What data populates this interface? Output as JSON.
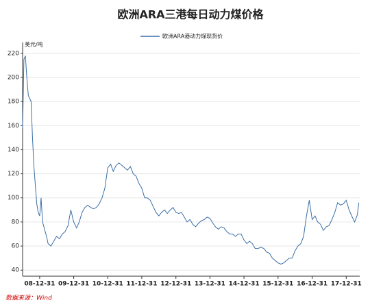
{
  "chart_data": {
    "type": "line",
    "title": "欧洲ARA三港每日动力煤价格",
    "y_label": "美元/吨",
    "source": "数据来源：Wind",
    "x": [
      "08-07-01",
      "08-07-15",
      "08-07-31",
      "08-08-15",
      "08-08-31",
      "08-09-30",
      "08-10-15",
      "08-10-31",
      "08-11-15",
      "08-11-30",
      "08-12-15",
      "08-12-31",
      "09-01-15",
      "09-01-31",
      "09-02-28",
      "09-03-15",
      "09-03-31",
      "09-04-30",
      "09-05-31",
      "09-06-30",
      "09-07-31",
      "09-08-31",
      "09-09-30",
      "09-10-31",
      "09-11-30",
      "09-12-31",
      "10-01-31",
      "10-02-28",
      "10-03-31",
      "10-04-30",
      "10-05-31",
      "10-06-30",
      "10-07-31",
      "10-08-31",
      "10-09-30",
      "10-10-31",
      "10-11-30",
      "10-12-31",
      "11-01-31",
      "11-02-28",
      "11-03-31",
      "11-04-30",
      "11-05-31",
      "11-06-30",
      "11-07-31",
      "11-08-31",
      "11-09-30",
      "11-10-31",
      "11-11-30",
      "11-12-31",
      "12-01-31",
      "12-02-29",
      "12-03-31",
      "12-04-30",
      "12-05-31",
      "12-06-30",
      "12-07-31",
      "12-08-31",
      "12-09-30",
      "12-10-31",
      "12-11-30",
      "12-12-31",
      "13-01-31",
      "13-02-28",
      "13-03-31",
      "13-04-30",
      "13-05-31",
      "13-06-30",
      "13-07-31",
      "13-08-31",
      "13-09-30",
      "13-10-31",
      "13-11-30",
      "13-12-31",
      "14-01-31",
      "14-02-28",
      "14-03-31",
      "14-04-30",
      "14-05-31",
      "14-06-30",
      "14-07-31",
      "14-08-31",
      "14-09-30",
      "14-10-31",
      "14-11-30",
      "14-12-31",
      "15-01-31",
      "15-02-28",
      "15-03-31",
      "15-04-30",
      "15-05-31",
      "15-06-30",
      "15-07-31",
      "15-08-31",
      "15-09-30",
      "15-10-31",
      "15-11-30",
      "15-12-31",
      "16-01-31",
      "16-02-29",
      "16-03-31",
      "16-04-30",
      "16-05-31",
      "16-06-30",
      "16-07-31",
      "16-08-31",
      "16-09-30",
      "16-10-31",
      "16-11-30",
      "16-12-31",
      "17-01-31",
      "17-02-28",
      "17-03-31",
      "17-04-30",
      "17-05-31",
      "17-06-30",
      "17-07-31",
      "17-08-31",
      "17-09-30",
      "17-10-31",
      "17-11-30",
      "17-12-31",
      "18-01-31",
      "18-02-28",
      "18-03-31",
      "18-04-30",
      "18-05-15"
    ],
    "series": [
      {
        "name": "欧洲ARA港动力煤现货价",
        "color": "#3a6ea5",
        "values": [
          158,
          215,
          218,
          200,
          185,
          180,
          150,
          125,
          110,
          95,
          88,
          85,
          100,
          80,
          72,
          68,
          62,
          60,
          64,
          68,
          66,
          70,
          72,
          77,
          90,
          80,
          75,
          80,
          88,
          92,
          94,
          92,
          91,
          92,
          95,
          100,
          108,
          125,
          128,
          122,
          127,
          129,
          127,
          125,
          123,
          126,
          120,
          118,
          112,
          108,
          100,
          100,
          98,
          93,
          88,
          85,
          88,
          90,
          87,
          90,
          92,
          88,
          87,
          88,
          84,
          80,
          82,
          78,
          76,
          79,
          81,
          82,
          84,
          83,
          79,
          76,
          74,
          76,
          75,
          72,
          70,
          70,
          68,
          70,
          70,
          65,
          62,
          64,
          62,
          58,
          58,
          59,
          58,
          55,
          54,
          50,
          48,
          46,
          45,
          46,
          48,
          50,
          50,
          56,
          60,
          62,
          68,
          85,
          98,
          82,
          85,
          80,
          78,
          73,
          76,
          77,
          82,
          88,
          96,
          94,
          95,
          98,
          90,
          85,
          80,
          86,
          96
        ]
      }
    ],
    "xlim": [
      "08-07-01",
      "18-05-25"
    ],
    "xticks": [
      "08-12-31",
      "09-12-31",
      "10-12-31",
      "11-12-31",
      "12-12-31",
      "13-12-31",
      "14-12-31",
      "15-12-31",
      "16-12-31",
      "17-12-31"
    ],
    "ylim": [
      35,
      229
    ],
    "yticks": [
      40,
      60,
      80,
      100,
      120,
      140,
      160,
      180,
      200,
      220
    ],
    "grid": true
  }
}
